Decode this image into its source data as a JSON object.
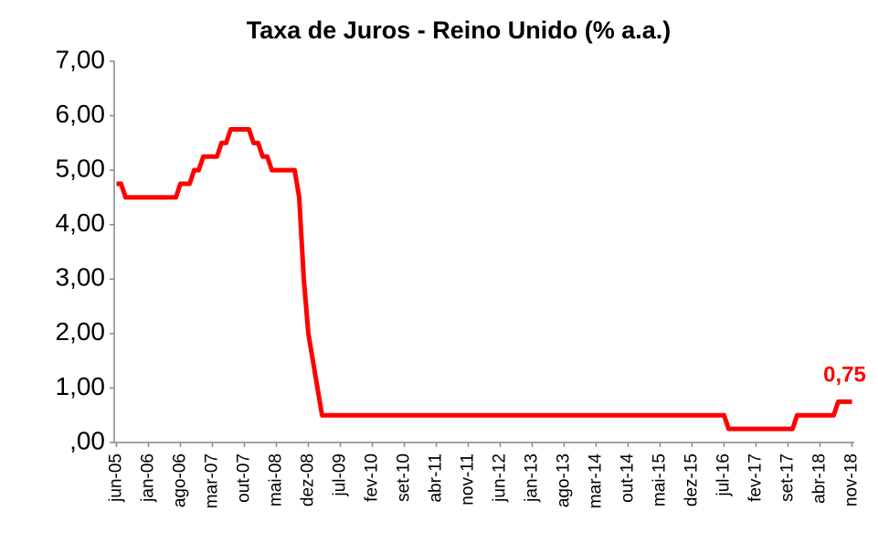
{
  "chart_data": {
    "type": "line",
    "title": "Taxa de Juros - Reino Unido (% a.a.)",
    "color": "#ff0000",
    "ylim": [
      0,
      7
    ],
    "yticks": [
      {
        "value": 0,
        "label": ",00"
      },
      {
        "value": 1,
        "label": "1,00"
      },
      {
        "value": 2,
        "label": "2,00"
      },
      {
        "value": 3,
        "label": "3,00"
      },
      {
        "value": 4,
        "label": "4,00"
      },
      {
        "value": 5,
        "label": "5,00"
      },
      {
        "value": 6,
        "label": "6,00"
      },
      {
        "value": 7,
        "label": "7,00"
      }
    ],
    "categories": [
      "jun-05",
      null,
      null,
      null,
      null,
      null,
      null,
      "jan-06",
      null,
      null,
      null,
      null,
      null,
      null,
      "ago-06",
      null,
      null,
      null,
      null,
      null,
      null,
      "mar-07",
      null,
      null,
      null,
      null,
      null,
      null,
      "out-07",
      null,
      null,
      null,
      null,
      null,
      null,
      "mai-08",
      null,
      null,
      null,
      null,
      null,
      null,
      "dez-08",
      null,
      null,
      null,
      null,
      null,
      null,
      "jul-09",
      null,
      null,
      null,
      null,
      null,
      null,
      "fev-10",
      null,
      null,
      null,
      null,
      null,
      null,
      "set-10",
      null,
      null,
      null,
      null,
      null,
      null,
      "abr-11",
      null,
      null,
      null,
      null,
      null,
      null,
      "nov-11",
      null,
      null,
      null,
      null,
      null,
      null,
      "jun-12",
      null,
      null,
      null,
      null,
      null,
      null,
      "jan-13",
      null,
      null,
      null,
      null,
      null,
      null,
      "ago-13",
      null,
      null,
      null,
      null,
      null,
      null,
      "mar-14",
      null,
      null,
      null,
      null,
      null,
      null,
      "out-14",
      null,
      null,
      null,
      null,
      null,
      null,
      "mai-15",
      null,
      null,
      null,
      null,
      null,
      null,
      "dez-15",
      null,
      null,
      null,
      null,
      null,
      null,
      "jul-16",
      null,
      null,
      null,
      null,
      null,
      null,
      "fev-17",
      null,
      null,
      null,
      null,
      null,
      null,
      "set-17",
      null,
      null,
      null,
      null,
      null,
      null,
      "abr-18",
      null,
      null,
      null,
      null,
      null,
      null,
      "nov-18"
    ],
    "values": [
      4.75,
      4.75,
      4.5,
      4.5,
      4.5,
      4.5,
      4.5,
      4.5,
      4.5,
      4.5,
      4.5,
      4.5,
      4.5,
      4.5,
      4.75,
      4.75,
      4.75,
      5,
      5,
      5.25,
      5.25,
      5.25,
      5.25,
      5.5,
      5.5,
      5.75,
      5.75,
      5.75,
      5.75,
      5.75,
      5.5,
      5.5,
      5.25,
      5.25,
      5,
      5,
      5,
      5,
      5,
      5,
      4.5,
      3,
      2,
      1.5,
      1,
      0.5,
      0.5,
      0.5,
      0.5,
      0.5,
      0.5,
      0.5,
      0.5,
      0.5,
      0.5,
      0.5,
      0.5,
      0.5,
      0.5,
      0.5,
      0.5,
      0.5,
      0.5,
      0.5,
      0.5,
      0.5,
      0.5,
      0.5,
      0.5,
      0.5,
      0.5,
      0.5,
      0.5,
      0.5,
      0.5,
      0.5,
      0.5,
      0.5,
      0.5,
      0.5,
      0.5,
      0.5,
      0.5,
      0.5,
      0.5,
      0.5,
      0.5,
      0.5,
      0.5,
      0.5,
      0.5,
      0.5,
      0.5,
      0.5,
      0.5,
      0.5,
      0.5,
      0.5,
      0.5,
      0.5,
      0.5,
      0.5,
      0.5,
      0.5,
      0.5,
      0.5,
      0.5,
      0.5,
      0.5,
      0.5,
      0.5,
      0.5,
      0.5,
      0.5,
      0.5,
      0.5,
      0.5,
      0.5,
      0.5,
      0.5,
      0.5,
      0.5,
      0.5,
      0.5,
      0.5,
      0.5,
      0.5,
      0.5,
      0.5,
      0.5,
      0.5,
      0.5,
      0.5,
      0.5,
      0.25,
      0.25,
      0.25,
      0.25,
      0.25,
      0.25,
      0.25,
      0.25,
      0.25,
      0.25,
      0.25,
      0.25,
      0.25,
      0.25,
      0.25,
      0.5,
      0.5,
      0.5,
      0.5,
      0.5,
      0.5,
      0.5,
      0.5,
      0.5,
      0.75,
      0.75,
      0.75,
      0.75
    ],
    "value_labels": [
      null,
      null,
      null,
      null,
      null,
      null,
      null,
      null,
      null,
      null,
      null,
      null,
      null,
      null,
      null,
      null,
      null,
      null,
      null,
      null,
      null,
      null,
      null,
      null,
      null,
      null,
      null,
      null,
      null,
      null,
      null,
      null,
      null,
      null,
      null,
      null,
      null,
      null,
      null,
      null,
      null,
      null,
      null,
      null,
      null,
      null,
      null,
      null,
      null,
      null,
      null,
      null,
      null,
      null,
      null,
      null,
      null,
      null,
      null,
      null,
      null,
      null,
      null,
      null,
      null,
      null,
      null,
      null,
      null,
      null,
      null,
      null,
      null,
      null,
      null,
      null,
      null,
      null,
      null,
      null,
      null,
      null,
      null,
      null,
      null,
      null,
      null,
      null,
      null,
      null,
      null,
      null,
      null,
      null,
      null,
      null,
      null,
      null,
      null,
      null,
      null,
      null,
      null,
      null,
      null,
      null,
      null,
      null,
      null,
      null,
      null,
      null,
      null,
      null,
      null,
      null,
      null,
      null,
      null,
      null,
      null,
      null,
      null,
      null,
      null,
      null,
      null,
      null,
      null,
      null,
      null,
      null,
      null,
      null,
      null,
      null,
      null,
      null,
      null,
      null,
      null,
      null,
      null,
      null,
      null,
      null,
      null,
      null,
      null,
      null,
      null,
      null,
      null,
      null,
      null,
      null,
      null,
      null,
      null,
      null,
      null,
      "0,75"
    ]
  }
}
